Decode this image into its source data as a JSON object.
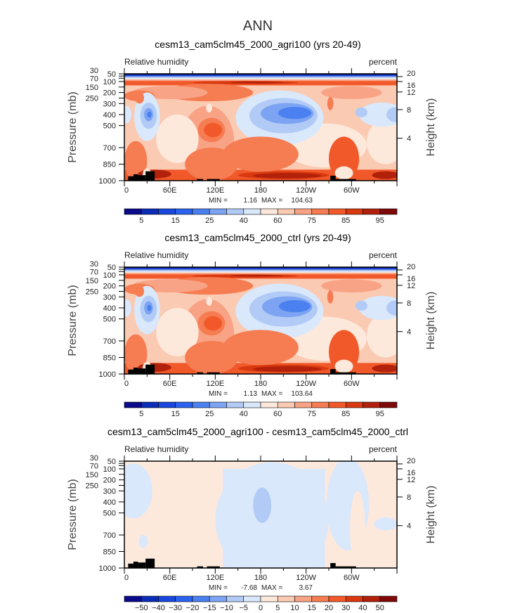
{
  "title": "ANN",
  "chart_data": [
    {
      "type": "heatmap",
      "title": "cesm13_cam5clm45_2000_agri100 (yrs 20-49)",
      "left_label": "Relative humidity",
      "right_label": "percent",
      "ylabel": "Pressure (mb)",
      "ylabel_right": "Height (km)",
      "xticks": [
        "0",
        "60E",
        "120E",
        "180",
        "120W",
        "60W"
      ],
      "xtick_values": [
        0,
        60,
        120,
        180,
        240,
        300
      ],
      "yticks": [
        "30",
        "50",
        "70",
        "100",
        "150",
        "200",
        "250",
        "300",
        "400",
        "500",
        "700",
        "850",
        "1000"
      ],
      "ytick_values": [
        30,
        50,
        70,
        100,
        150,
        200,
        250,
        300,
        400,
        500,
        700,
        850,
        1000
      ],
      "yticks_right": [
        "20",
        "16",
        "12",
        "8",
        "4"
      ],
      "yticks_right_pressure": [
        55,
        100,
        195,
        355,
        615
      ],
      "xlim": [
        0,
        360
      ],
      "ylim": [
        1000,
        30
      ],
      "min_label": "MIN =",
      "min_value": "1.16",
      "max_label": "MAX =",
      "max_value": "104.63",
      "levels": [
        5,
        10,
        15,
        20,
        25,
        30,
        40,
        50,
        60,
        70,
        75,
        80,
        85,
        90,
        95
      ],
      "level_labels": [
        "5",
        "15",
        "25",
        "40",
        "60",
        "75",
        "85",
        "95"
      ],
      "field": "mean",
      "variant": 0
    },
    {
      "type": "heatmap",
      "title": "cesm13_cam5clm45_2000_ctrl (yrs 20-49)",
      "left_label": "Relative humidity",
      "right_label": "percent",
      "ylabel": "Pressure (mb)",
      "ylabel_right": "Height (km)",
      "xticks": [
        "0",
        "60E",
        "120E",
        "180",
        "120W",
        "60W"
      ],
      "xtick_values": [
        0,
        60,
        120,
        180,
        240,
        300
      ],
      "yticks": [
        "30",
        "50",
        "70",
        "100",
        "150",
        "200",
        "250",
        "300",
        "400",
        "500",
        "700",
        "850",
        "1000"
      ],
      "ytick_values": [
        30,
        50,
        70,
        100,
        150,
        200,
        250,
        300,
        400,
        500,
        700,
        850,
        1000
      ],
      "yticks_right": [
        "20",
        "16",
        "12",
        "8",
        "4"
      ],
      "yticks_right_pressure": [
        55,
        100,
        195,
        355,
        615
      ],
      "xlim": [
        0,
        360
      ],
      "ylim": [
        1000,
        30
      ],
      "min_label": "MIN =",
      "min_value": "1.13",
      "max_label": "MAX =",
      "max_value": "103.64",
      "levels": [
        5,
        10,
        15,
        20,
        25,
        30,
        40,
        50,
        60,
        70,
        75,
        80,
        85,
        90,
        95
      ],
      "level_labels": [
        "5",
        "15",
        "25",
        "40",
        "60",
        "75",
        "85",
        "95"
      ],
      "field": "mean",
      "variant": 1
    },
    {
      "type": "heatmap",
      "title": "cesm13_cam5clm45_2000_agri100 - cesm13_cam5clm45_2000_ctrl",
      "left_label": "Relative humidity",
      "right_label": "percent",
      "ylabel": "Pressure (mb)",
      "ylabel_right": "Height (km)",
      "xticks": [
        "0",
        "60E",
        "120E",
        "180",
        "120W",
        "60W"
      ],
      "xtick_values": [
        0,
        60,
        120,
        180,
        240,
        300
      ],
      "yticks": [
        "30",
        "50",
        "70",
        "100",
        "150",
        "200",
        "250",
        "300",
        "400",
        "500",
        "700",
        "850",
        "1000"
      ],
      "ytick_values": [
        30,
        50,
        70,
        100,
        150,
        200,
        250,
        300,
        400,
        500,
        700,
        850,
        1000
      ],
      "yticks_right": [
        "20",
        "16",
        "12",
        "8",
        "4"
      ],
      "yticks_right_pressure": [
        55,
        100,
        195,
        355,
        615
      ],
      "xlim": [
        0,
        360
      ],
      "ylim": [
        1000,
        30
      ],
      "min_label": "MIN =",
      "min_value": "-7.68",
      "max_label": "MAX =",
      "max_value": "3.67",
      "levels": [
        -50,
        -40,
        -30,
        -20,
        -15,
        -10,
        -5,
        0,
        5,
        10,
        15,
        20,
        30,
        40,
        50
      ],
      "level_labels": [
        "-50",
        "-40",
        "-30",
        "-20",
        "-15",
        "-10",
        "-5",
        "0",
        "5",
        "10",
        "15",
        "20",
        "30",
        "40",
        "50"
      ],
      "field": "diff",
      "variant": 2
    }
  ],
  "colors": [
    "#0a0a8a",
    "#0b2cb6",
    "#1747dd",
    "#2b62ef",
    "#4b80f0",
    "#7ca4f2",
    "#b2cbf6",
    "#d9e8fb",
    "#fde9dc",
    "#fbcab2",
    "#f8a385",
    "#f67c52",
    "#f2592a",
    "#d9390f",
    "#b2210b",
    "#7f0909"
  ],
  "land_color": "#000000",
  "surface_pressure": [
    {
      "lon": [
        5,
        12
      ],
      "p": 960
    },
    {
      "lon": [
        12,
        18
      ],
      "p": 942
    },
    {
      "lon": [
        18,
        28
      ],
      "p": 950
    },
    {
      "lon": [
        28,
        40
      ],
      "p": 915
    },
    {
      "lon": [
        96,
        104
      ],
      "p": 985
    },
    {
      "lon": [
        109,
        126
      ],
      "p": 985
    },
    {
      "lon": [
        272,
        279
      ],
      "p": 955
    },
    {
      "lon": [
        279,
        306
      ],
      "p": 985
    }
  ]
}
